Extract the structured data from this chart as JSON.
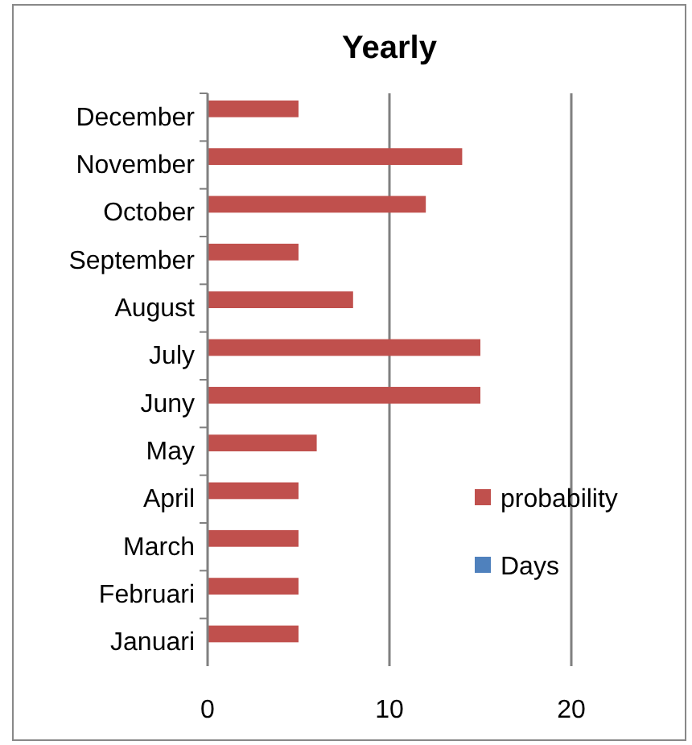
{
  "chart_data": {
    "type": "bar",
    "orientation": "horizontal",
    "title": "Yearly",
    "categories": [
      "December",
      "November",
      "October",
      "September",
      "August",
      "July",
      "Juny",
      "May",
      "April",
      "March",
      "Februari",
      "Januari"
    ],
    "series": [
      {
        "name": "probability",
        "color": "#c0504d",
        "values": [
          5,
          14,
          12,
          5,
          8,
          15,
          15,
          6,
          5,
          5,
          5,
          5
        ]
      },
      {
        "name": "Days",
        "color": "#4f81bd",
        "values": [
          null,
          null,
          null,
          null,
          null,
          null,
          null,
          null,
          null,
          null,
          null,
          null
        ]
      }
    ],
    "xlim": [
      0,
      20
    ],
    "xticks": [
      0,
      10,
      20
    ],
    "grid": "x",
    "legend": "right"
  }
}
